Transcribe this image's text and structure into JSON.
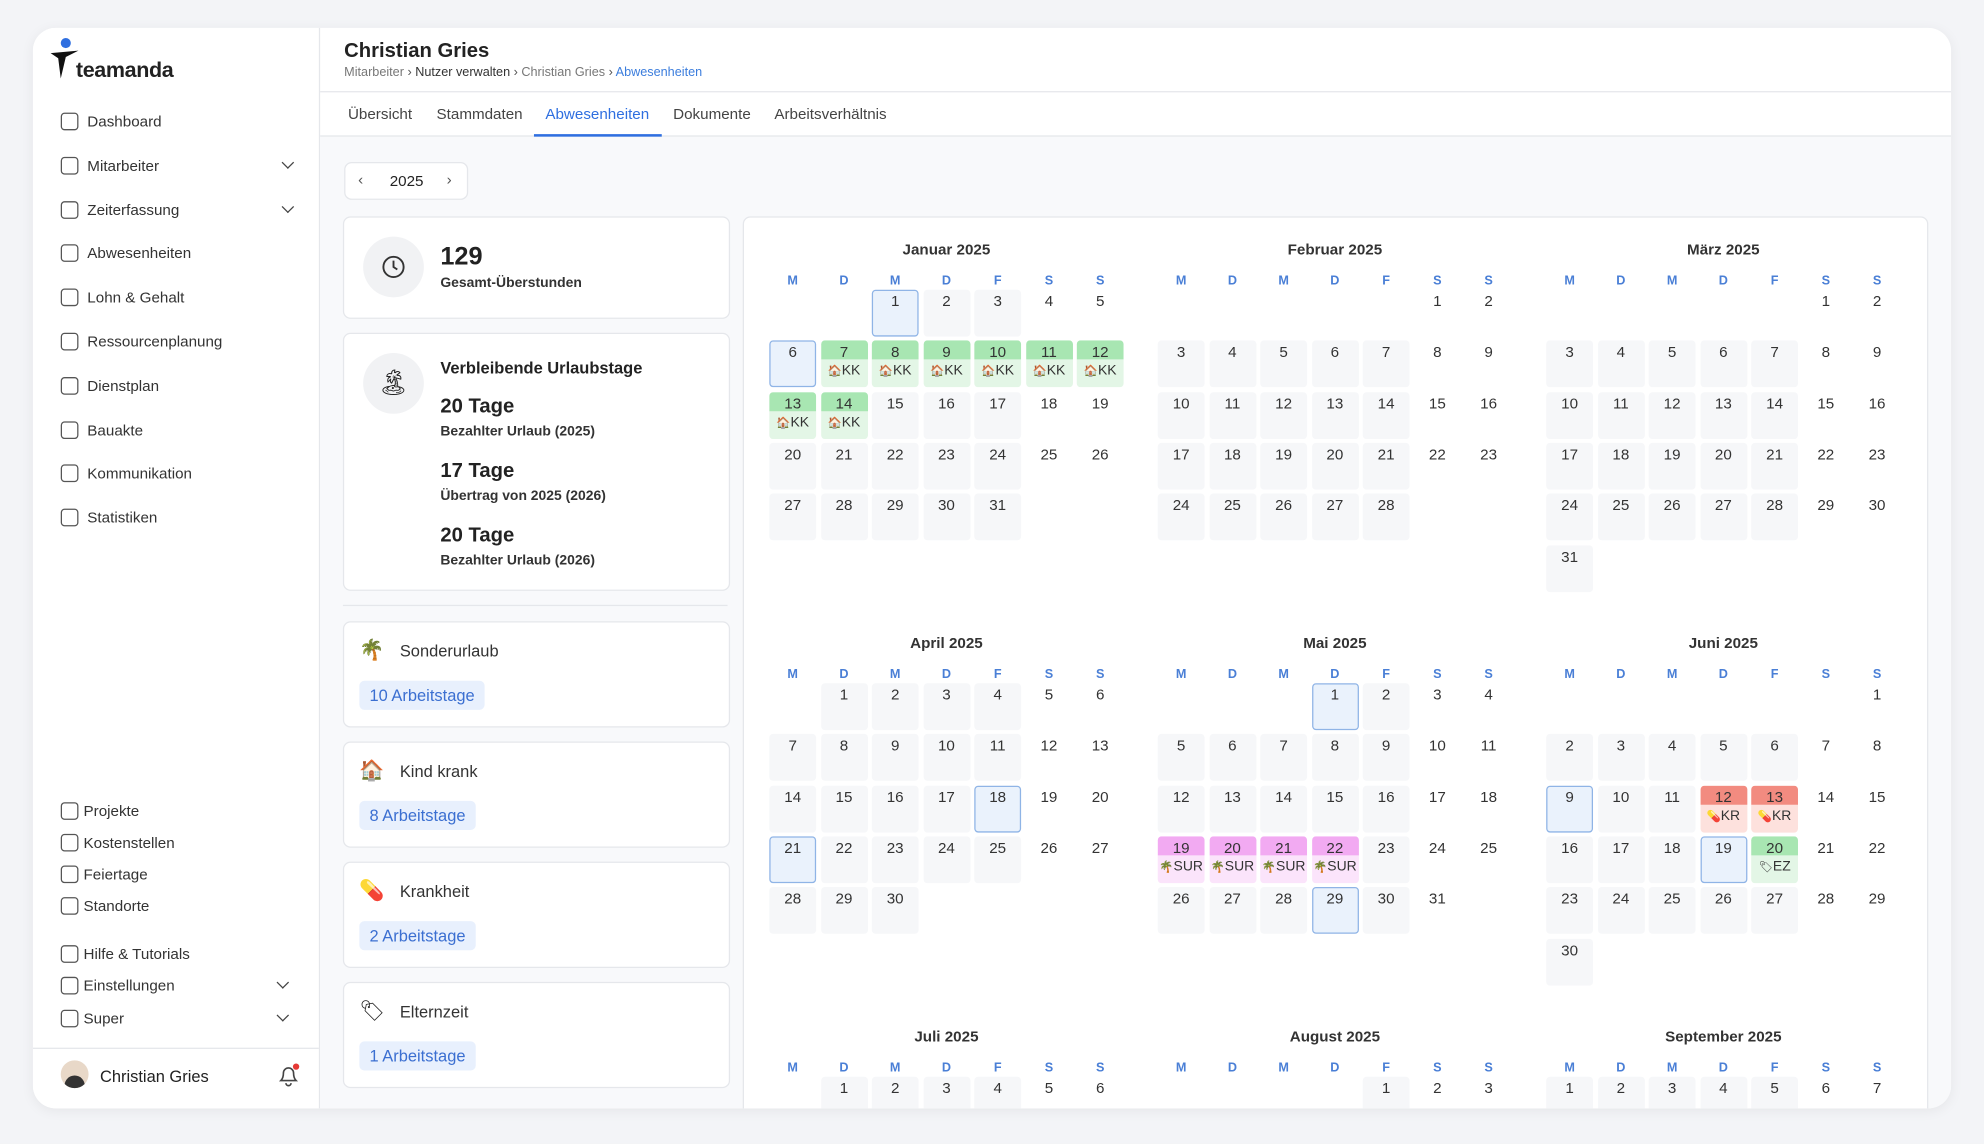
{
  "sidebar": {
    "brand": "teamanda",
    "nav": [
      {
        "label": "Dashboard"
      },
      {
        "label": "Mitarbeiter",
        "expandable": true
      },
      {
        "label": "Zeiterfassung",
        "expandable": true
      },
      {
        "label": "Abwesenheiten"
      },
      {
        "label": "Lohn & Gehalt"
      },
      {
        "label": "Ressourcenplanung"
      },
      {
        "label": "Dienstplan"
      },
      {
        "label": "Bauakte"
      },
      {
        "label": "Kommunikation"
      },
      {
        "label": "Statistiken"
      }
    ],
    "secondary": [
      {
        "label": "Projekte"
      },
      {
        "label": "Kostenstellen"
      },
      {
        "label": "Feiertage"
      },
      {
        "label": "Standorte"
      },
      {
        "label": "Hilfe & Tutorials"
      },
      {
        "label": "Einstellungen",
        "expandable": true
      },
      {
        "label": "Super",
        "expandable": true
      }
    ],
    "user": "Christian Gries"
  },
  "header": {
    "title": "Christian Gries",
    "breadcrumb": [
      "Mitarbeiter",
      "Nutzer verwalten",
      "Christian Gries",
      "Abwesenheiten"
    ]
  },
  "tabs": {
    "items": [
      "Übersicht",
      "Stammdaten",
      "Abwesenheiten",
      "Dokumente",
      "Arbeitsverhältnis"
    ],
    "active": 2
  },
  "year": "2025",
  "overtime": {
    "value": "129",
    "label": "Gesamt-Überstunden"
  },
  "vacation": {
    "title": "Verbleibende Urlaubstage",
    "entries": [
      {
        "value": "20 Tage",
        "label": "Bezahlter Urlaub (2025)"
      },
      {
        "value": "17 Tage",
        "label": "Übertrag von 2025 (2026)"
      },
      {
        "value": "20 Tage",
        "label": "Bezahlter Urlaub (2026)"
      }
    ]
  },
  "absence_types": [
    {
      "name": "Sonderurlaub",
      "count": "10 Arbeitstage",
      "type": "sonderurlaub"
    },
    {
      "name": "Kind krank",
      "count": "8 Arbeitstage",
      "type": "kind_krank"
    },
    {
      "name": "Krankheit",
      "count": "2 Arbeitstage",
      "type": "krankheit"
    },
    {
      "name": "Elternzeit",
      "count": "1 Arbeitstage",
      "type": "elternzeit"
    }
  ],
  "calendar": {
    "weekdays": [
      "M",
      "D",
      "M",
      "D",
      "F",
      "S",
      "S"
    ],
    "months": [
      {
        "title": "Januar 2025",
        "weeks": [
          [
            null,
            null,
            {
              "day": 1,
              "holiday": true
            },
            2,
            3,
            4,
            5
          ],
          [
            {
              "day": 6,
              "holiday": true
            },
            {
              "day": 7,
              "label": "KK",
              "type": "kind_krank"
            },
            {
              "day": 8,
              "label": "KK",
              "type": "kind_krank"
            },
            {
              "day": 9,
              "label": "KK",
              "type": "kind_krank"
            },
            {
              "day": 10,
              "label": "KK",
              "type": "kind_krank"
            },
            {
              "day": 11,
              "label": "KK",
              "type": "kind_krank"
            },
            {
              "day": 12,
              "label": "KK",
              "type": "kind_krank"
            }
          ],
          [
            {
              "day": 13,
              "label": "KK",
              "type": "kind_krank"
            },
            {
              "day": 14,
              "label": "KK",
              "type": "kind_krank"
            },
            15,
            16,
            17,
            18,
            19
          ],
          [
            20,
            21,
            22,
            23,
            24,
            25,
            26
          ],
          [
            27,
            28,
            29,
            30,
            31,
            null,
            null
          ]
        ]
      },
      {
        "title": "Februar 2025",
        "weeks": [
          [
            null,
            null,
            null,
            null,
            null,
            1,
            2
          ],
          [
            3,
            4,
            5,
            6,
            7,
            8,
            9
          ],
          [
            10,
            11,
            12,
            13,
            14,
            15,
            16
          ],
          [
            17,
            18,
            19,
            20,
            21,
            22,
            23
          ],
          [
            24,
            25,
            26,
            27,
            28,
            null,
            null
          ]
        ]
      },
      {
        "title": "März 2025",
        "weeks": [
          [
            null,
            null,
            null,
            null,
            null,
            1,
            2
          ],
          [
            3,
            4,
            5,
            6,
            7,
            8,
            9
          ],
          [
            10,
            11,
            12,
            13,
            14,
            15,
            16
          ],
          [
            17,
            18,
            19,
            20,
            21,
            22,
            23
          ],
          [
            24,
            25,
            26,
            27,
            28,
            29,
            30
          ],
          [
            31,
            null,
            null,
            null,
            null,
            null,
            null
          ]
        ]
      },
      {
        "title": "April 2025",
        "weeks": [
          [
            null,
            1,
            2,
            3,
            4,
            5,
            6
          ],
          [
            7,
            8,
            9,
            10,
            11,
            12,
            13
          ],
          [
            14,
            15,
            16,
            17,
            {
              "day": 18,
              "holiday": true
            },
            19,
            20
          ],
          [
            {
              "day": 21,
              "holiday": true
            },
            22,
            23,
            24,
            25,
            26,
            27
          ],
          [
            28,
            29,
            30,
            null,
            null,
            null,
            null
          ]
        ]
      },
      {
        "title": "Mai 2025",
        "weeks": [
          [
            null,
            null,
            null,
            {
              "day": 1,
              "holiday": true
            },
            2,
            3,
            4
          ],
          [
            5,
            6,
            7,
            8,
            9,
            10,
            11
          ],
          [
            12,
            13,
            14,
            15,
            16,
            17,
            18
          ],
          [
            {
              "day": 19,
              "label": "SUR",
              "type": "sonderurlaub"
            },
            {
              "day": 20,
              "label": "SUR",
              "type": "sonderurlaub"
            },
            {
              "day": 21,
              "label": "SUR",
              "type": "sonderurlaub"
            },
            {
              "day": 22,
              "label": "SUR",
              "type": "sonderurlaub"
            },
            23,
            24,
            25
          ],
          [
            26,
            27,
            28,
            {
              "day": 29,
              "holiday": true
            },
            30,
            31,
            null
          ]
        ]
      },
      {
        "title": "Juni 2025",
        "weeks": [
          [
            null,
            null,
            null,
            null,
            null,
            null,
            1
          ],
          [
            2,
            3,
            4,
            5,
            6,
            7,
            8
          ],
          [
            {
              "day": 9,
              "holiday": true
            },
            10,
            11,
            {
              "day": 12,
              "label": "KR",
              "type": "krankheit"
            },
            {
              "day": 13,
              "label": "KR",
              "type": "krankheit"
            },
            14,
            15
          ],
          [
            16,
            17,
            18,
            {
              "day": 19,
              "holiday": true
            },
            {
              "day": 20,
              "label": "EZ",
              "type": "elternzeit"
            },
            21,
            22
          ],
          [
            23,
            24,
            25,
            26,
            27,
            28,
            29
          ],
          [
            30,
            null,
            null,
            null,
            null,
            null,
            null
          ]
        ]
      },
      {
        "title": "Juli 2025",
        "weeks": [
          [
            null,
            1,
            2,
            3,
            4,
            5,
            6
          ]
        ]
      },
      {
        "title": "August 2025",
        "weeks": [
          [
            null,
            null,
            null,
            null,
            1,
            2,
            3
          ]
        ]
      },
      {
        "title": "September 2025",
        "weeks": [
          [
            1,
            2,
            3,
            4,
            5,
            6,
            7
          ]
        ]
      }
    ]
  }
}
